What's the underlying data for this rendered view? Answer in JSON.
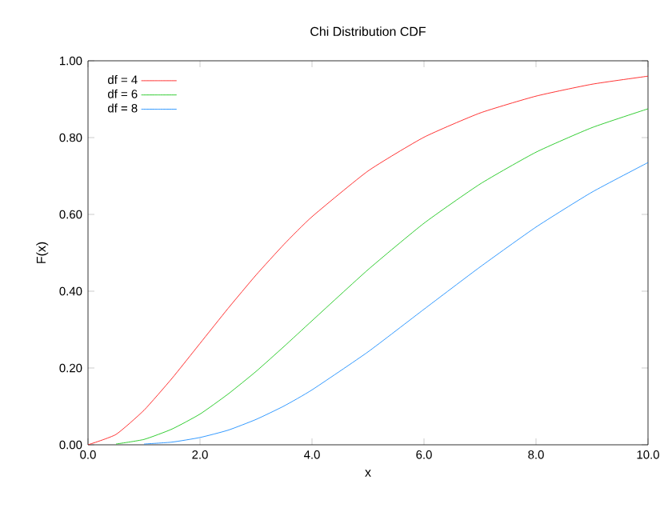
{
  "chart_data": {
    "type": "line",
    "title": "Chi Distribution CDF",
    "xlabel": "x",
    "ylabel": "F(x)",
    "x": [
      0,
      0.5,
      1,
      1.5,
      2,
      2.5,
      3,
      3.5,
      4,
      5,
      6,
      7,
      8,
      9,
      10
    ],
    "series": [
      {
        "name": "df = 4",
        "color": "#ff0000",
        "values": [
          0,
          0.027,
          0.09,
          0.173,
          0.264,
          0.355,
          0.442,
          0.522,
          0.594,
          0.713,
          0.801,
          0.864,
          0.908,
          0.939,
          0.96
        ]
      },
      {
        "name": "df = 6",
        "color": "#00c000",
        "values": [
          null,
          0.002,
          0.014,
          0.041,
          0.08,
          0.132,
          0.191,
          0.256,
          0.323,
          0.456,
          0.577,
          0.679,
          0.762,
          0.826,
          0.875
        ]
      },
      {
        "name": "df = 8",
        "color": "#0080ff",
        "values": [
          null,
          null,
          0.002,
          0.007,
          0.019,
          0.038,
          0.066,
          0.101,
          0.143,
          0.242,
          0.353,
          0.463,
          0.567,
          0.658,
          0.735
        ]
      }
    ],
    "xlim": [
      0,
      10
    ],
    "ylim": [
      0,
      1
    ],
    "xticks": [
      {
        "value": 0,
        "label": "0.0"
      },
      {
        "value": 2,
        "label": "2.0"
      },
      {
        "value": 4,
        "label": "4.0"
      },
      {
        "value": 6,
        "label": "6.0"
      },
      {
        "value": 8,
        "label": "8.0"
      },
      {
        "value": 10,
        "label": "10.0"
      }
    ],
    "yticks": [
      {
        "value": 0,
        "label": "0.00"
      },
      {
        "value": 0.2,
        "label": "0.20"
      },
      {
        "value": 0.4,
        "label": "0.40"
      },
      {
        "value": 0.6,
        "label": "0.60"
      },
      {
        "value": 0.8,
        "label": "0.80"
      },
      {
        "value": 1,
        "label": "1.00"
      }
    ],
    "legend": "top left",
    "marker": "none",
    "line_style": "solid",
    "grid": false
  }
}
